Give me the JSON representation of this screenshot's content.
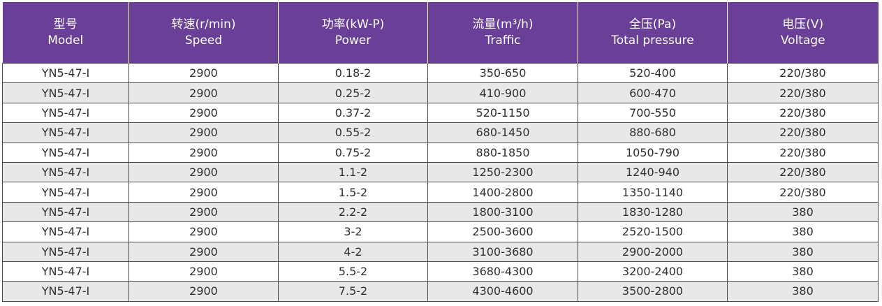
{
  "colors": {
    "header_bg": "#6a3f98",
    "header_text": "#ffffff",
    "stripe": "#e8e8e8",
    "border": "#4a4a4a"
  },
  "headers": [
    {
      "zh": "型号",
      "en": "Model"
    },
    {
      "zh": "转速(r/min)",
      "en": "Speed"
    },
    {
      "zh": "功率(kW-P)",
      "en": "Power"
    },
    {
      "zh": "流量(m³/h)",
      "en": "Traffic"
    },
    {
      "zh": "全压(Pa)",
      "en": "Total pressure"
    },
    {
      "zh": "电压(V)",
      "en": "Voltage"
    }
  ],
  "rows": [
    [
      "YN5-47-I",
      "2900",
      "0.18-2",
      "350-650",
      "520-400",
      "220/380"
    ],
    [
      "YN5-47-I",
      "2900",
      "0.25-2",
      "410-900",
      "600-470",
      "220/380"
    ],
    [
      "YN5-47-I",
      "2900",
      "0.37-2",
      "520-1150",
      "700-550",
      "220/380"
    ],
    [
      "YN5-47-I",
      "2900",
      "0.55-2",
      "680-1450",
      "880-680",
      "220/380"
    ],
    [
      "YN5-47-I",
      "2900",
      "0.75-2",
      "880-1850",
      "1050-790",
      "220/380"
    ],
    [
      "YN5-47-I",
      "2900",
      "1.1-2",
      "1250-2300",
      "1240-940",
      "220/380"
    ],
    [
      "YN5-47-I",
      "2900",
      "1.5-2",
      "1400-2800",
      "1350-1140",
      "220/380"
    ],
    [
      "YN5-47-I",
      "2900",
      "2.2-2",
      "1800-3100",
      "1830-1280",
      "380"
    ],
    [
      "YN5-47-I",
      "2900",
      "3-2",
      "2500-3600",
      "2520-1500",
      "380"
    ],
    [
      "YN5-47-I",
      "2900",
      "4-2",
      "3100-3680",
      "2900-2000",
      "380"
    ],
    [
      "YN5-47-I",
      "2900",
      "5.5-2",
      "3680-4300",
      "3200-2400",
      "380"
    ],
    [
      "YN5-47-I",
      "2900",
      "7.5-2",
      "4300-4600",
      "3500-2800",
      "380"
    ]
  ]
}
